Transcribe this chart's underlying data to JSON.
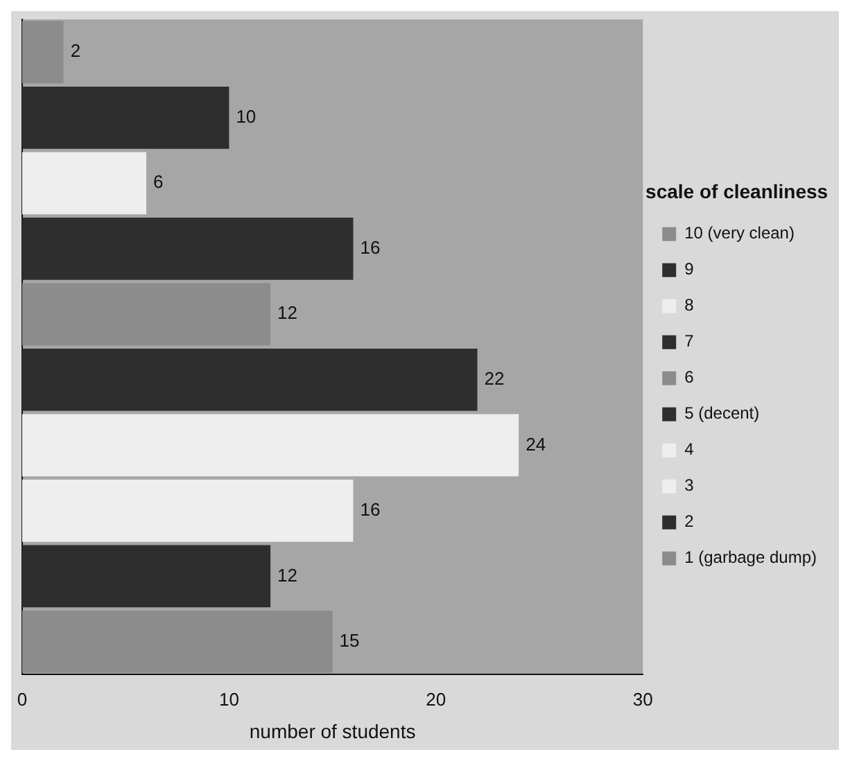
{
  "chart_data": {
    "type": "bar",
    "orientation": "horizontal",
    "xlabel": "number of students",
    "legend_title": "scale of cleanliness",
    "categories": [
      null,
      null,
      null,
      null,
      null,
      null,
      null,
      null,
      null,
      null
    ],
    "series": [
      {
        "name": "10 (very clean)",
        "color": "#8c8c8c",
        "values": [
          2,
          null,
          null,
          null,
          null,
          null,
          null,
          null,
          null,
          null
        ]
      },
      {
        "name": "9",
        "color": "#2e2e2e",
        "values": [
          null,
          10,
          null,
          null,
          null,
          null,
          null,
          null,
          null,
          null
        ]
      },
      {
        "name": "8",
        "color": "#eeeeee",
        "values": [
          null,
          null,
          6,
          null,
          null,
          null,
          null,
          null,
          null,
          null
        ]
      },
      {
        "name": "7",
        "color": "#2e2e2e",
        "values": [
          null,
          null,
          null,
          16,
          null,
          null,
          null,
          null,
          null,
          null
        ]
      },
      {
        "name": "6",
        "color": "#8c8c8c",
        "values": [
          null,
          null,
          null,
          null,
          12,
          null,
          null,
          null,
          null,
          null
        ]
      },
      {
        "name": "5 (decent)",
        "color": "#2e2e2e",
        "values": [
          null,
          null,
          null,
          null,
          null,
          22,
          null,
          null,
          null,
          null
        ]
      },
      {
        "name": "4",
        "color": "#eeeeee",
        "values": [
          null,
          null,
          null,
          null,
          null,
          null,
          24,
          null,
          null,
          null
        ]
      },
      {
        "name": "3",
        "color": "#eeeeee",
        "values": [
          null,
          null,
          null,
          null,
          null,
          null,
          null,
          16,
          null,
          null
        ]
      },
      {
        "name": "2",
        "color": "#2e2e2e",
        "values": [
          null,
          null,
          null,
          null,
          null,
          null,
          null,
          null,
          12,
          null
        ]
      },
      {
        "name": "1 (garbage dump)",
        "color": "#8c8c8c",
        "values": [
          null,
          null,
          null,
          null,
          null,
          null,
          null,
          null,
          null,
          15
        ]
      }
    ],
    "xlim": [
      0,
      30
    ],
    "xticks": [
      0,
      10,
      20,
      30
    ],
    "data_labels": true,
    "tick_labels": "x",
    "legend": "right",
    "grid": false
  }
}
